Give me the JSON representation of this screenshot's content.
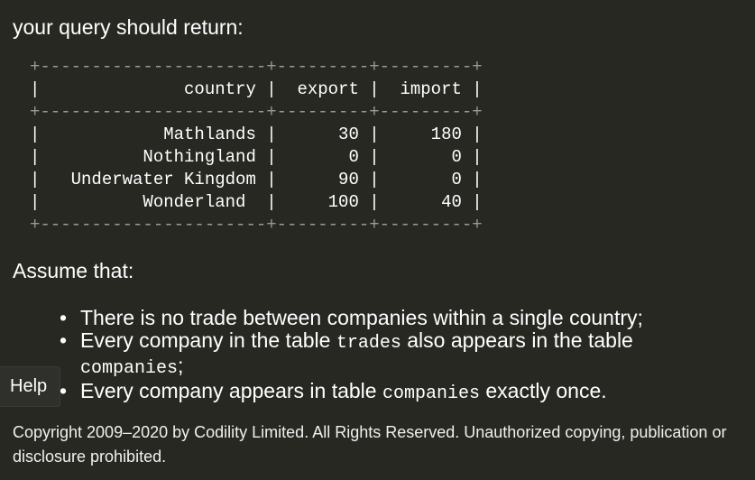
{
  "intro_text": "your query should return:",
  "result_table": {
    "border_top": "+----------------------+---------+---------+",
    "border_mid": "+----------------------+---------+---------+",
    "border_bottom": "+----------------------+---------+---------+",
    "header_row": "|              country |  export |  import |",
    "rows": [
      "|            Mathlands |      30 |     180 |",
      "|          Nothingland |       0 |       0 |",
      "|   Underwater Kingdom |      90 |       0 |",
      "|          Wonderland  |     100 |      40 |"
    ]
  },
  "assume_text": "Assume that:",
  "notes": {
    "bullet": "•",
    "item1": "There is no trade between companies within a single country;",
    "item2_pre": "Every company in the table ",
    "item2_code1": "trades",
    "item2_mid": " also appears in the table",
    "item2_code2": "companies",
    "item2_post": ";",
    "item3_pre": "Every company appears in table ",
    "item3_code": "companies",
    "item3_post": " exactly once."
  },
  "help_label": "Help",
  "footer_text": "Copyright 2009–2020 by Codility Limited. All Rights Reserved. Unauthorized copying, publication or disclosure prohibited."
}
